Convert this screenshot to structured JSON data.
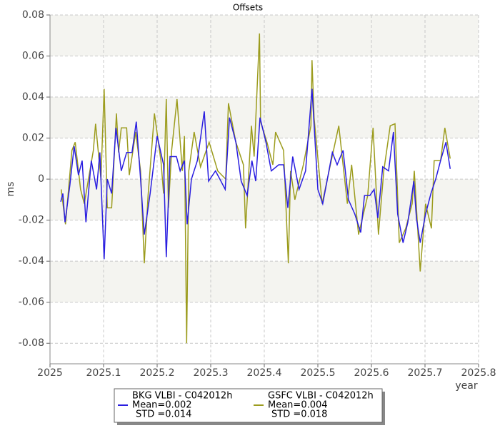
{
  "chart_data": {
    "type": "line",
    "title": "Offsets",
    "x_label": "year",
    "y_label": "ms",
    "xlim": [
      2025,
      2025.8
    ],
    "xticks": [
      2025,
      2025.1,
      2025.2,
      2025.3,
      2025.4,
      2025.5,
      2025.6,
      2025.7,
      2025.8
    ],
    "ylim": [
      -0.09,
      0.08
    ],
    "yticks": [
      0.08,
      0.06,
      0.04,
      0.02,
      0,
      -0.02,
      -0.04,
      -0.06,
      -0.08
    ],
    "grid": true,
    "bands": true,
    "series": [
      {
        "name": "BKG VLBI - C042012h",
        "mean_label": "Mean=0.002",
        "std_label": "STD =0.014",
        "color": "#2a1ee0",
        "x": [
          2025.02,
          2025.024,
          2025.028,
          2025.037,
          2025.045,
          2025.053,
          2025.06,
          2025.067,
          2025.077,
          2025.087,
          2025.093,
          2025.101,
          2025.107,
          2025.115,
          2025.123,
          2025.133,
          2025.143,
          2025.153,
          2025.161,
          2025.169,
          2025.176,
          2025.187,
          2025.2,
          2025.212,
          2025.217,
          2025.224,
          2025.236,
          2025.243,
          2025.251,
          2025.256,
          2025.264,
          2025.275,
          2025.288,
          2025.296,
          2025.309,
          2025.317,
          2025.327,
          2025.335,
          2025.347,
          2025.357,
          2025.368,
          2025.377,
          2025.384,
          2025.392,
          2025.403,
          2025.413,
          2025.427,
          2025.436,
          2025.444,
          2025.453,
          2025.465,
          2025.477,
          2025.489,
          2025.5,
          2025.509,
          2025.517,
          2025.527,
          2025.536,
          2025.547,
          2025.557,
          2025.569,
          2025.58,
          2025.587,
          2025.597,
          2025.605,
          2025.612,
          2025.621,
          2025.632,
          2025.641,
          2025.649,
          2025.659,
          2025.668,
          2025.679,
          2025.684,
          2025.691,
          2025.701,
          2025.711,
          2025.72,
          2025.729,
          2025.739,
          2025.747
        ],
        "values": [
          -0.011,
          -0.007,
          -0.021,
          -0.003,
          0.016,
          0.002,
          0.009,
          -0.021,
          0.009,
          -0.005,
          0.013,
          -0.039,
          0.0,
          -0.007,
          0.025,
          0.004,
          0.013,
          0.013,
          0.028,
          0.0,
          -0.027,
          -0.007,
          0.021,
          0.007,
          -0.038,
          0.011,
          0.011,
          0.004,
          0.009,
          -0.022,
          0.0,
          0.009,
          0.033,
          -0.001,
          0.004,
          0.0,
          -0.005,
          0.03,
          0.018,
          -0.001,
          -0.008,
          0.009,
          -0.001,
          0.03,
          0.018,
          0.004,
          0.007,
          0.007,
          -0.014,
          0.011,
          -0.005,
          0.004,
          0.044,
          -0.005,
          -0.012,
          -0.001,
          0.013,
          0.007,
          0.014,
          -0.01,
          -0.017,
          -0.026,
          -0.008,
          -0.008,
          -0.005,
          -0.019,
          0.006,
          0.004,
          0.023,
          -0.017,
          -0.031,
          -0.021,
          -0.001,
          -0.019,
          -0.031,
          -0.017,
          -0.007,
          0.0,
          0.009,
          0.018,
          0.005
        ]
      },
      {
        "name": "GSFC VLBI - C042012h",
        "mean_label": "Mean=0.004",
        "std_label": "STD =0.018",
        "color": "#9c9c1e",
        "x": [
          2025.021,
          2025.029,
          2025.041,
          2025.047,
          2025.057,
          2025.064,
          2025.081,
          2025.085,
          2025.095,
          2025.101,
          2025.107,
          2025.115,
          2025.124,
          2025.128,
          2025.133,
          2025.143,
          2025.148,
          2025.16,
          2025.169,
          2025.176,
          2025.183,
          2025.195,
          2025.207,
          2025.212,
          2025.217,
          2025.221,
          2025.227,
          2025.237,
          2025.247,
          2025.251,
          2025.255,
          2025.259,
          2025.269,
          2025.281,
          2025.297,
          2025.313,
          2025.328,
          2025.333,
          2025.347,
          2025.361,
          2025.365,
          2025.376,
          2025.381,
          2025.391,
          2025.393,
          2025.405,
          2025.416,
          2025.421,
          2025.436,
          2025.441,
          2025.445,
          2025.449,
          2025.457,
          2025.473,
          2025.487,
          2025.489,
          2025.493,
          2025.508,
          2025.521,
          2025.539,
          2025.555,
          2025.563,
          2025.576,
          2025.593,
          2025.603,
          2025.613,
          2025.623,
          2025.635,
          2025.644,
          2025.652,
          2025.664,
          2025.676,
          2025.68,
          2025.691,
          2025.701,
          2025.712,
          2025.717,
          2025.729,
          2025.737,
          2025.747
        ],
        "values": [
          -0.005,
          -0.022,
          0.014,
          0.018,
          -0.005,
          -0.012,
          0.014,
          0.027,
          0.0,
          0.044,
          -0.014,
          -0.014,
          0.032,
          0.013,
          0.025,
          0.025,
          0.002,
          0.023,
          0.004,
          -0.041,
          -0.008,
          0.032,
          0.009,
          -0.007,
          0.039,
          -0.014,
          0.014,
          0.039,
          0.004,
          0.021,
          -0.08,
          0.004,
          0.023,
          0.006,
          0.018,
          0.004,
          0.0,
          0.037,
          0.018,
          0.007,
          -0.024,
          0.026,
          0.011,
          0.071,
          0.028,
          0.018,
          0.007,
          0.023,
          0.014,
          -0.017,
          -0.041,
          0.004,
          -0.01,
          0.007,
          0.026,
          0.058,
          0.03,
          -0.012,
          0.004,
          0.026,
          -0.012,
          0.007,
          -0.027,
          -0.008,
          0.025,
          -0.027,
          0.004,
          0.026,
          0.027,
          -0.031,
          -0.024,
          -0.012,
          0.004,
          -0.045,
          -0.012,
          -0.024,
          0.009,
          0.009,
          0.025,
          0.01
        ]
      }
    ]
  }
}
